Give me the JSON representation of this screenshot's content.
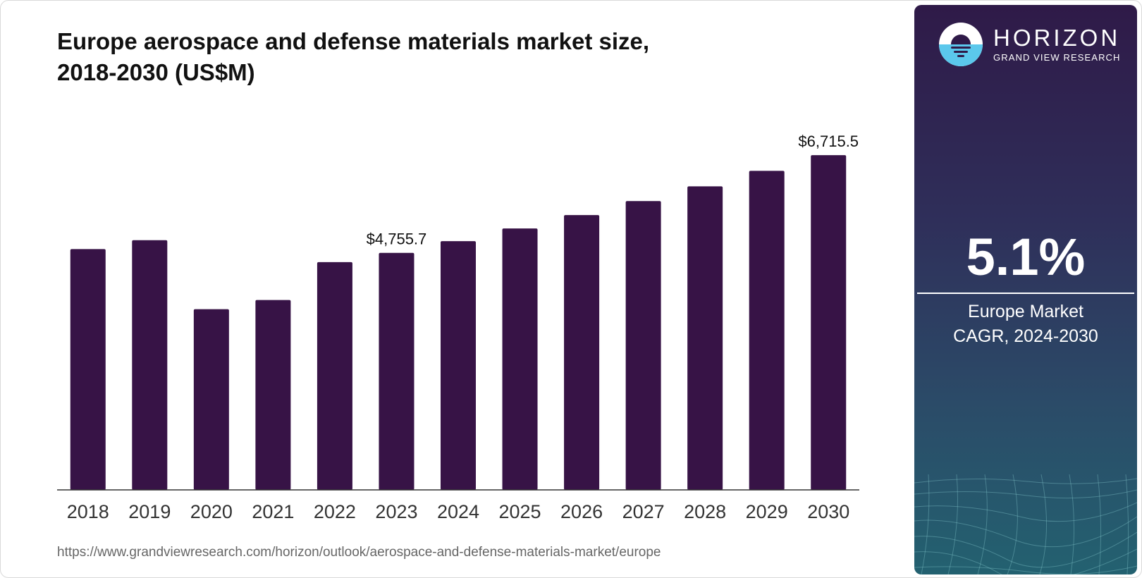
{
  "title_line1": "Europe aerospace and defense materials market size,",
  "title_line2": "2018-2030 (US$M)",
  "source_url": "https://www.grandviewresearch.com/horizon/outlook/aerospace-and-defense-materials-market/europe",
  "brand": {
    "name": "HORIZON",
    "sub": "GRAND VIEW RESEARCH",
    "icon": "sunrise-logo-icon"
  },
  "cagr": {
    "value": "5.1%",
    "label_line1": "Europe Market",
    "label_line2": "CAGR, 2024-2030"
  },
  "colors": {
    "bar": "#371346",
    "axis": "#333333",
    "text": "#111111",
    "panel_top": "#2f1a48",
    "panel_bottom": "#236170"
  },
  "chart_data": {
    "type": "bar",
    "categories": [
      "2018",
      "2019",
      "2020",
      "2021",
      "2022",
      "2023",
      "2024",
      "2025",
      "2026",
      "2027",
      "2028",
      "2029",
      "2030"
    ],
    "values": [
      4831,
      5010,
      3625,
      3810,
      4570,
      4755.7,
      4990,
      5245,
      5513,
      5794,
      6090,
      6401,
      6715.5
    ],
    "data_labels": [
      {
        "category": "2023",
        "text": "$4,755.7"
      },
      {
        "category": "2030",
        "text": "$6,715.5"
      }
    ],
    "xlabel": "",
    "ylabel": "",
    "ylim": [
      0,
      8400
    ],
    "grid": false,
    "legend": "none"
  }
}
